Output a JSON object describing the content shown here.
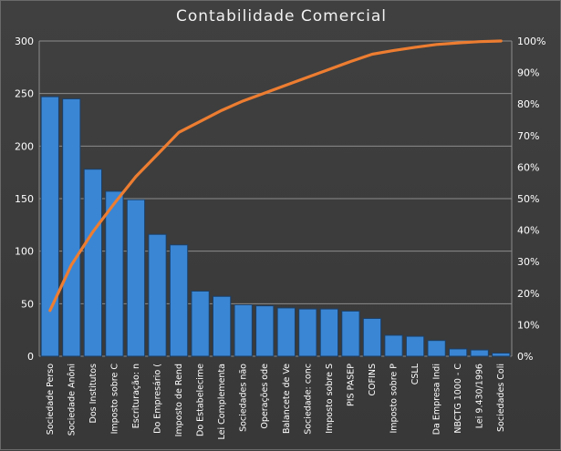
{
  "chart_data": {
    "type": "bar",
    "title": "Contabilidade  Comercial",
    "categories": [
      "Sociedade Perso",
      "Sociedade Anôni",
      "Dos Institutos",
      "Imposto sobre C",
      "Escrituração: n",
      "Do Empresário (",
      "Imposto de Rend",
      "Do Estabelecime",
      "Lei Complementa",
      "Sociedades não",
      "Operações ode",
      "Balancete de Ve",
      "Sociedade: conc",
      "Imposto sobre S",
      "PIS PASEP",
      "COFINS",
      "Imposto sobre P",
      "CSLL",
      "Da Empresa Indi",
      "NBCTG 1000 - C",
      "Lei 9.430/1996",
      "Sociedades Coli"
    ],
    "series": [
      {
        "type": "bar",
        "values": [
          247,
          245,
          178,
          157,
          149,
          116,
          106,
          62,
          57,
          49,
          48,
          46,
          45,
          45,
          43,
          36,
          20,
          19,
          15,
          7,
          6,
          3
        ],
        "color": "#3a86d4"
      },
      {
        "type": "line",
        "axis": "right",
        "values": [
          14.5,
          29,
          39.5,
          48.5,
          57,
          64,
          71,
          74.5,
          78,
          81,
          83.5,
          86,
          88.5,
          91,
          93.5,
          95.8,
          97,
          98,
          98.9,
          99.4,
          99.8,
          100
        ],
        "color": "#ed7d31"
      }
    ],
    "ylim_left": [
      0,
      300
    ],
    "ylim_right": [
      0,
      100
    ],
    "left_ticks": [
      "0",
      "50",
      "100",
      "150",
      "200",
      "250",
      "300"
    ],
    "right_ticks": [
      "0%",
      "10%",
      "20%",
      "30%",
      "40%",
      "50%",
      "60%",
      "70%",
      "80%",
      "90%",
      "100%"
    ],
    "grid": true,
    "legend": "none"
  }
}
